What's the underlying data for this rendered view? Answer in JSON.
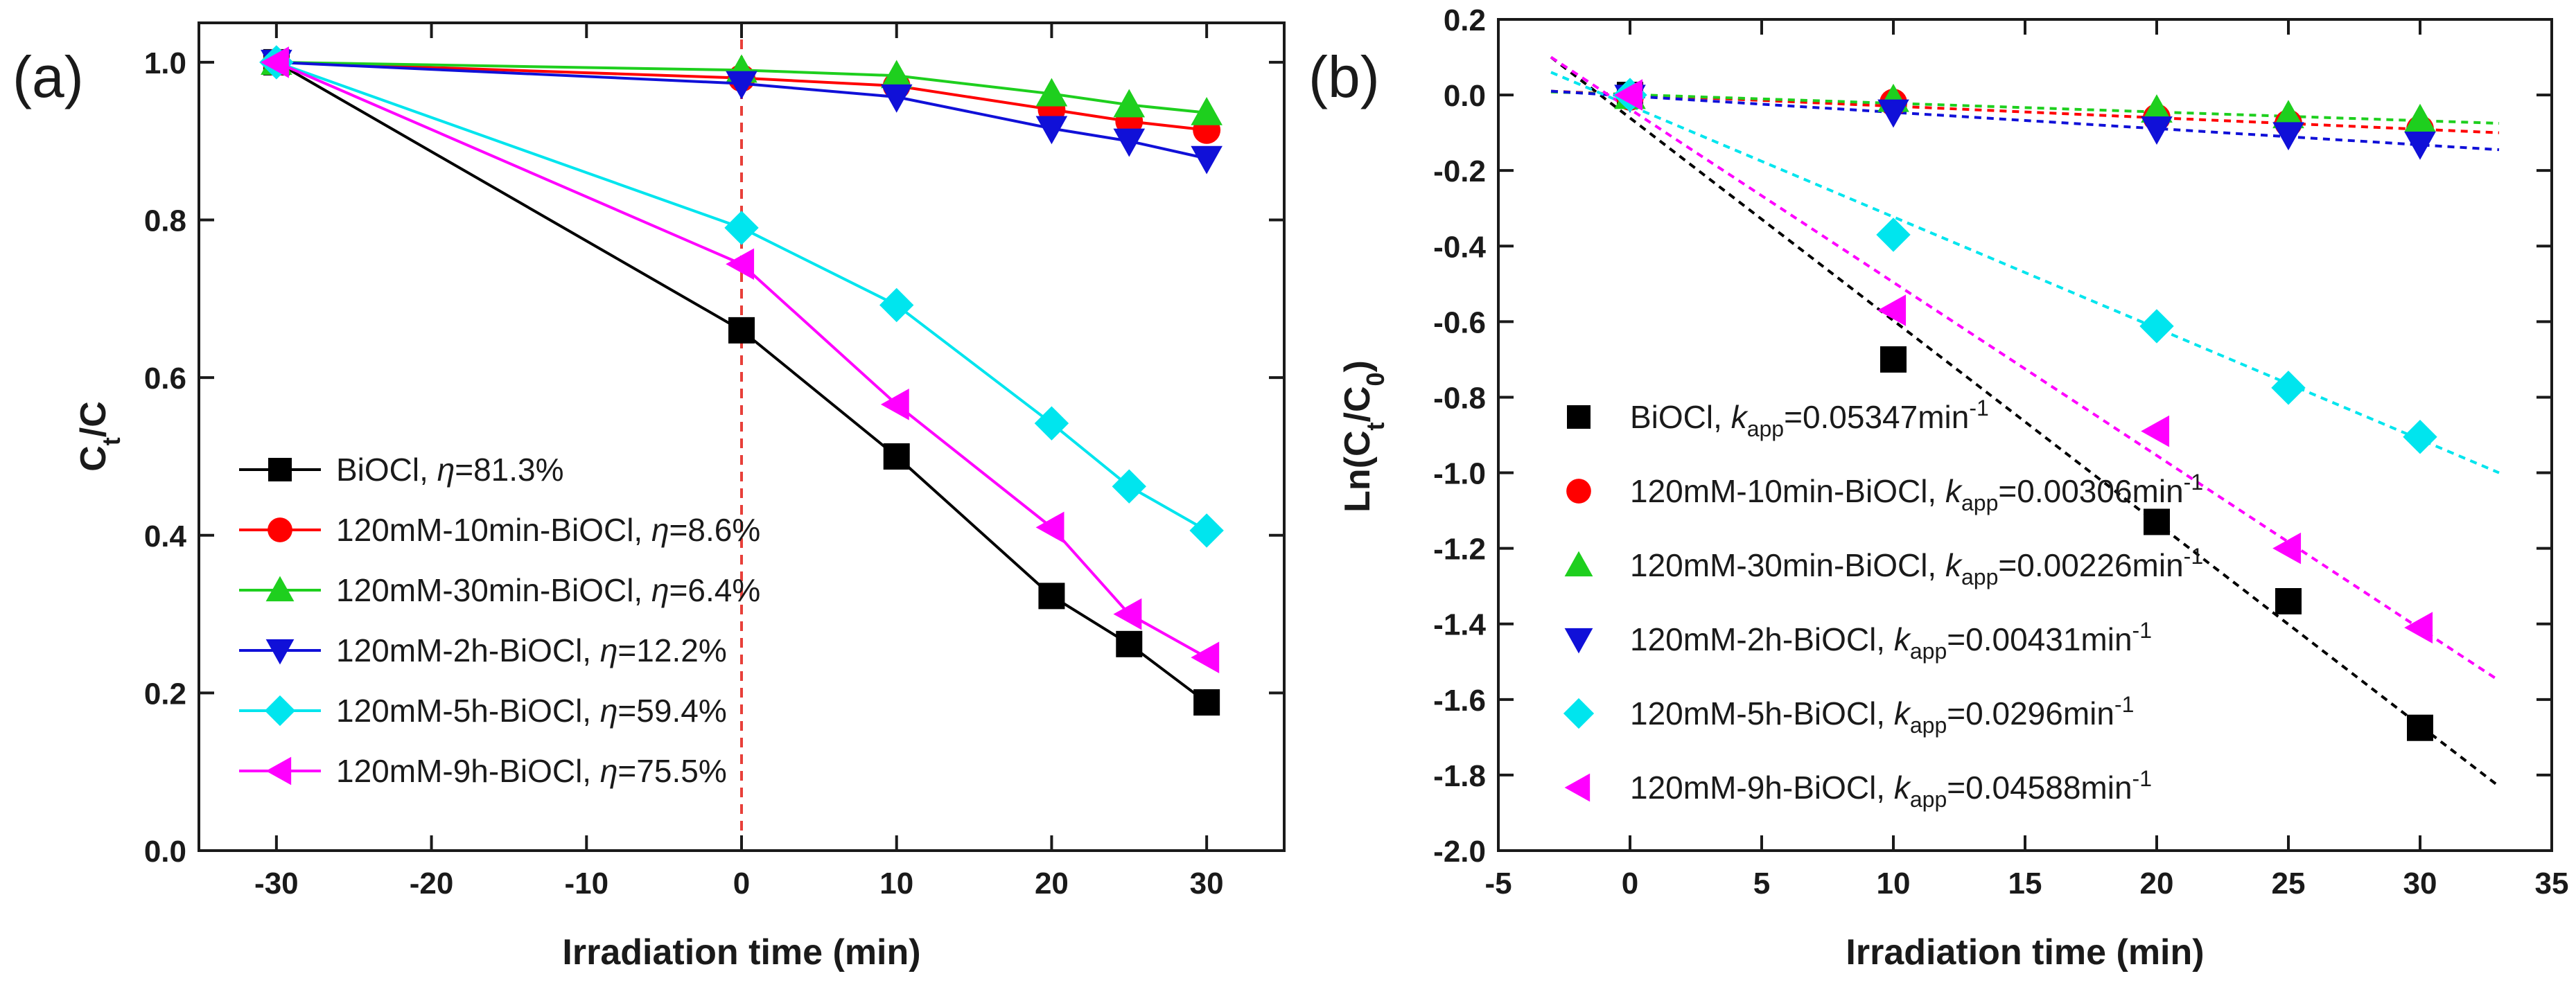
{
  "chart_data": [
    {
      "panel": "(a)",
      "type": "line",
      "title": "",
      "xlabel": "Irradiation time (min)",
      "ylabel_main": "C",
      "ylabel_sub": "t",
      "ylabel_tail": "/C",
      "xlim": [
        -35,
        35
      ],
      "ylim": [
        0.0,
        1.05
      ],
      "xticks": [
        -30,
        -20,
        -10,
        0,
        10,
        20,
        30
      ],
      "yticks": [
        0.0,
        0.2,
        0.4,
        0.6,
        0.8,
        1.0
      ],
      "xtick_labels": [
        "-30",
        "-20",
        "-10",
        "0",
        "10",
        "20",
        "30"
      ],
      "ytick_labels": [
        "0.0",
        "0.2",
        "0.4",
        "0.6",
        "0.8",
        "1.0"
      ],
      "vline_x": 0,
      "vline_color": "#e8403a",
      "legend_position": "lower-left",
      "series": [
        {
          "name": "BiOCl",
          "eta": "81.3%",
          "color": "#000000",
          "marker": "square",
          "x": [
            -30,
            0,
            10,
            20,
            25,
            30
          ],
          "y": [
            1.0,
            0.66,
            0.5,
            0.323,
            0.262,
            0.188
          ]
        },
        {
          "name": "120mM-10min-BiOCl",
          "eta": "8.6%",
          "color": "#ff0000",
          "marker": "circle",
          "x": [
            -30,
            0,
            10,
            20,
            25,
            30
          ],
          "y": [
            1.0,
            0.98,
            0.97,
            0.94,
            0.925,
            0.914
          ]
        },
        {
          "name": "120mM-30min-BiOCl",
          "eta": "6.4%",
          "color": "#1ecf1e",
          "marker": "triangle-up",
          "x": [
            -30,
            0,
            10,
            20,
            25,
            30
          ],
          "y": [
            1.0,
            0.99,
            0.983,
            0.96,
            0.946,
            0.936
          ]
        },
        {
          "name": "120mM-2h-BiOCl",
          "eta": "12.2%",
          "color": "#1010d8",
          "marker": "triangle-down",
          "x": [
            -30,
            0,
            10,
            20,
            25,
            30
          ],
          "y": [
            1.0,
            0.973,
            0.956,
            0.916,
            0.9,
            0.878
          ]
        },
        {
          "name": "120mM-5h-BiOCl",
          "eta": "59.4%",
          "color": "#00e5ee",
          "marker": "diamond",
          "x": [
            -30,
            0,
            10,
            20,
            25,
            30
          ],
          "y": [
            1.0,
            0.79,
            0.692,
            0.542,
            0.462,
            0.406
          ]
        },
        {
          "name": "120mM-9h-BiOCl",
          "eta": "75.5%",
          "color": "#ff00ff",
          "marker": "triangle-left",
          "x": [
            -30,
            0,
            10,
            20,
            25,
            30
          ],
          "y": [
            1.0,
            0.744,
            0.566,
            0.41,
            0.3,
            0.245
          ]
        }
      ]
    },
    {
      "panel": "(b)",
      "type": "scatter",
      "title": "",
      "xlabel": "Irradiation time (min)",
      "ylabel_main": "Ln(C",
      "ylabel_sub1": "t",
      "ylabel_mid": "/C",
      "ylabel_sub2": "0",
      "ylabel_tail": ")",
      "xlim": [
        -5,
        35
      ],
      "ylim": [
        -2.0,
        0.2
      ],
      "xticks": [
        -5,
        0,
        5,
        10,
        15,
        20,
        25,
        30,
        35
      ],
      "yticks": [
        -2.0,
        -1.8,
        -1.6,
        -1.4,
        -1.2,
        -1.0,
        -0.8,
        -0.6,
        -0.4,
        -0.2,
        0.0,
        0.2
      ],
      "xtick_labels": [
        "-5",
        "0",
        "5",
        "10",
        "15",
        "20",
        "25",
        "30",
        "35"
      ],
      "ytick_labels": [
        "-2.0",
        "-1.8",
        "-1.6",
        "-1.4",
        "-1.2",
        "-1.0",
        "-0.8",
        "-0.6",
        "-0.4",
        "-0.2",
        "0.0",
        "0.2"
      ],
      "legend_position": "lower-left",
      "k_symbol": "k",
      "k_subscript": "app",
      "unit": "min",
      "unit_sup": "-1",
      "series": [
        {
          "name": "BiOCl",
          "k": "0.05347",
          "color": "#000000",
          "marker": "square",
          "x": [
            0,
            10,
            20,
            25,
            30
          ],
          "y": [
            0.0,
            -0.7,
            -1.13,
            -1.34,
            -1.675
          ],
          "fit_x": [
            -3,
            33
          ],
          "fit_y": [
            0.1,
            -1.83
          ]
        },
        {
          "name": "120mM-10min-BiOCl",
          "k": "0.00306",
          "color": "#ff0000",
          "marker": "circle",
          "x": [
            0,
            10,
            20,
            25,
            30
          ],
          "y": [
            -0.005,
            -0.02,
            -0.06,
            -0.075,
            -0.09
          ],
          "fit_x": [
            -3,
            33
          ],
          "fit_y": [
            0.01,
            -0.1
          ]
        },
        {
          "name": "120mM-30min-BiOCl",
          "k": "0.00226",
          "color": "#1ecf1e",
          "marker": "triangle-up",
          "x": [
            0,
            10,
            20,
            25,
            30
          ],
          "y": [
            -0.004,
            -0.012,
            -0.04,
            -0.055,
            -0.065
          ],
          "fit_x": [
            -3,
            33
          ],
          "fit_y": [
            0.008,
            -0.075
          ]
        },
        {
          "name": "120mM-2h-BiOCl",
          "k": "0.00431",
          "color": "#1010d8",
          "marker": "triangle-down",
          "x": [
            0,
            10,
            20,
            25,
            30
          ],
          "y": [
            -0.006,
            -0.045,
            -0.09,
            -0.105,
            -0.13
          ],
          "fit_x": [
            -3,
            33
          ],
          "fit_y": [
            0.01,
            -0.145
          ]
        },
        {
          "name": "120mM-5h-BiOCl",
          "k": "0.0296",
          "color": "#00e5ee",
          "marker": "diamond",
          "x": [
            0,
            10,
            20,
            25,
            30
          ],
          "y": [
            0.0,
            -0.37,
            -0.612,
            -0.775,
            -0.905
          ],
          "fit_x": [
            -3,
            33
          ],
          "fit_y": [
            0.06,
            -1.0
          ]
        },
        {
          "name": "120mM-9h-BiOCl",
          "k": "0.04588",
          "color": "#ff00ff",
          "marker": "triangle-left",
          "x": [
            0,
            10,
            20,
            25,
            30
          ],
          "y": [
            0.0,
            -0.57,
            -0.89,
            -1.2,
            -1.41
          ],
          "fit_x": [
            -3,
            33
          ],
          "fit_y": [
            0.1,
            -1.55
          ]
        }
      ]
    }
  ]
}
